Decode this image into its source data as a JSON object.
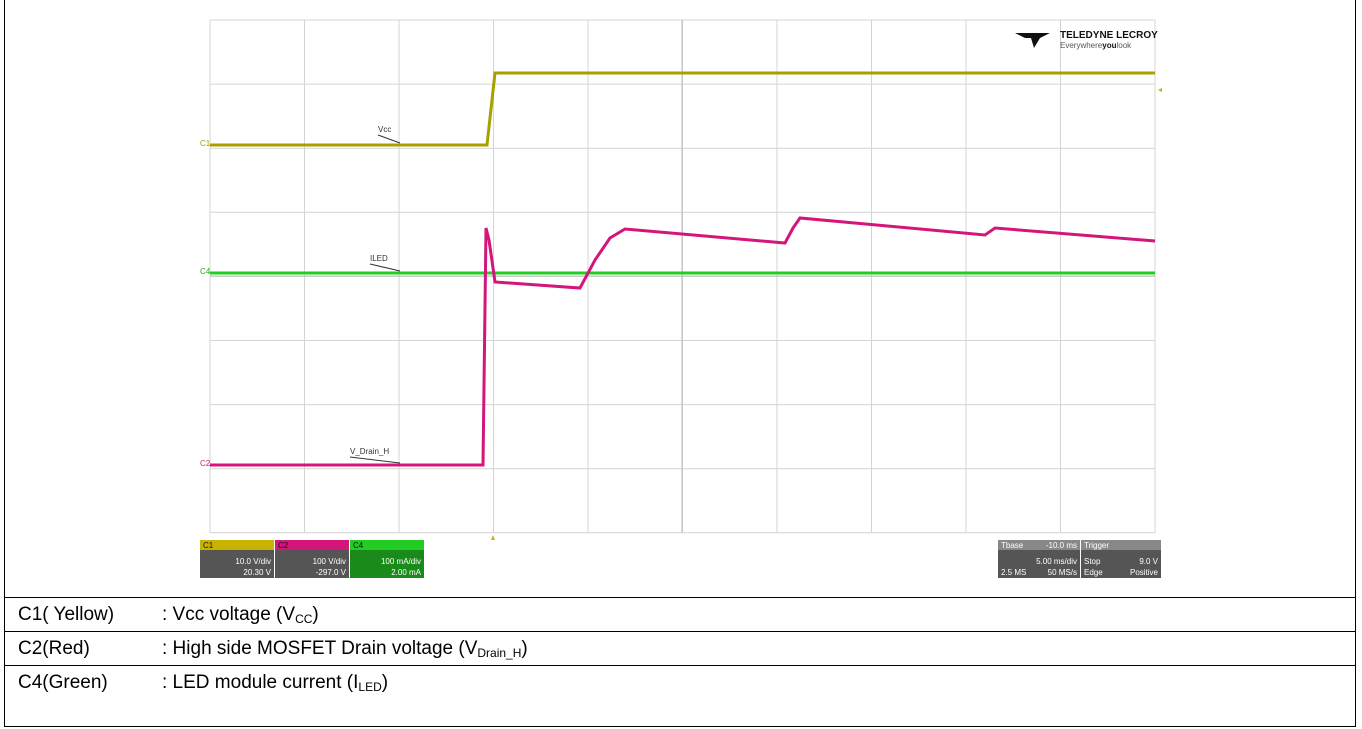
{
  "logo": {
    "brand": "TELEDYNE LECROY",
    "tagline_pre": "Everywhere",
    "tagline_bold": "you",
    "tagline_post": "look"
  },
  "trace_labels": {
    "c1": "C1",
    "vcc": "Vcc",
    "c4": "C4",
    "iled": "ILED",
    "c2": "C2",
    "vdrain": "V_Drain_H"
  },
  "channels": [
    {
      "id": "C1",
      "scale": "10.0 V/div",
      "offset": "20.30 V"
    },
    {
      "id": "C2",
      "scale": "100 V/div",
      "offset": "-297.0 V"
    },
    {
      "id": "C4",
      "scale": "100 mA/div",
      "offset": "2.00 mA"
    }
  ],
  "timebase": {
    "label": "Tbase",
    "delay": "-10.0 ms",
    "scale": "5.00 ms/div",
    "samples": "2.5 MS",
    "rate": "50 MS/s"
  },
  "trigger": {
    "label": "Trigger",
    "mode": "Stop",
    "level": "9.0 V",
    "type": "Edge",
    "slope": "Positive"
  },
  "legend": [
    {
      "channel": "C1( Yellow)",
      "description": ": Vcc  voltage (V",
      "subscript": "CC",
      "close": ")"
    },
    {
      "channel": "C2(Red)",
      "description": ": High side MOSFET Drain voltage (V",
      "subscript": "Drain_H",
      "close": ")"
    },
    {
      "channel": "C4(Green)",
      "description": ": LED module current (I",
      "subscript": "LED",
      "close": ")"
    }
  ]
}
